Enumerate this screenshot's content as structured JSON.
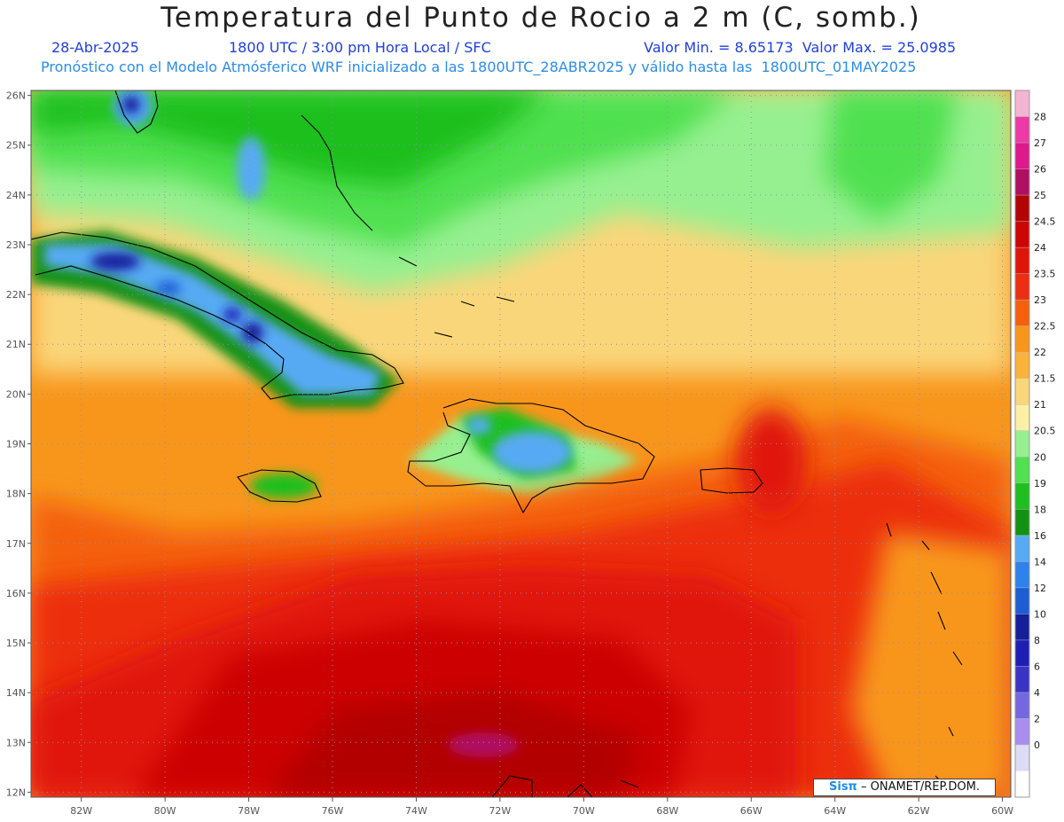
{
  "header": {
    "title": "Temperatura del Punto de Rocio a 2 m (C, somb.)",
    "date": "28-Abr-2025",
    "time": "1800 UTC / 3:00 pm Hora Local / SFC",
    "minmax": "Valor Min. = 8.65173  Valor Max. = 25.0985",
    "description": "Pronóstico con el Modelo Atmósferico WRF inicializado a las 1800UTC_28ABR2025 y válido hasta las  1800UTC_01MAY2025"
  },
  "map": {
    "lon_range": [
      -83.2,
      -59.8
    ],
    "lat_range": [
      11.9,
      26.1
    ],
    "lon_ticks": [
      "82W",
      "80W",
      "78W",
      "76W",
      "74W",
      "72W",
      "70W",
      "68W",
      "66W",
      "64W",
      "62W",
      "60W"
    ],
    "lat_ticks": [
      "12N",
      "13N",
      "14N",
      "15N",
      "16N",
      "17N",
      "18N",
      "19N",
      "20N",
      "21N",
      "22N",
      "23N",
      "24N",
      "25N",
      "26N"
    ],
    "grid": "dotted",
    "units": "C"
  },
  "colorbar": {
    "labels": [
      "28",
      "27",
      "26",
      "25",
      "24.5",
      "24",
      "23.5",
      "23",
      "22.5",
      "22",
      "21.5",
      "21",
      "20.5",
      "20",
      "19",
      "18",
      "16",
      "14",
      "12",
      "10",
      "8",
      "6",
      "4",
      "2",
      "0"
    ],
    "colors": [
      "#f4b4d4",
      "#ee3aa6",
      "#dc1a8c",
      "#b00f62",
      "#b20404",
      "#cc0505",
      "#e0150a",
      "#ec2f10",
      "#f4600e",
      "#f8961c",
      "#fab23a",
      "#fad67a",
      "#fbf0a6",
      "#96f090",
      "#50e050",
      "#1fbf1f",
      "#129212",
      "#56aaf4",
      "#2d82ec",
      "#1c5dd4",
      "#151f9a",
      "#1f1fb4",
      "#3a34c6",
      "#7468e0",
      "#a98ef0",
      "#dcdcf4",
      "#ffffff"
    ]
  },
  "credit": {
    "brand": "Sisπ",
    "text": " – ONAMET/REP.DOM."
  }
}
